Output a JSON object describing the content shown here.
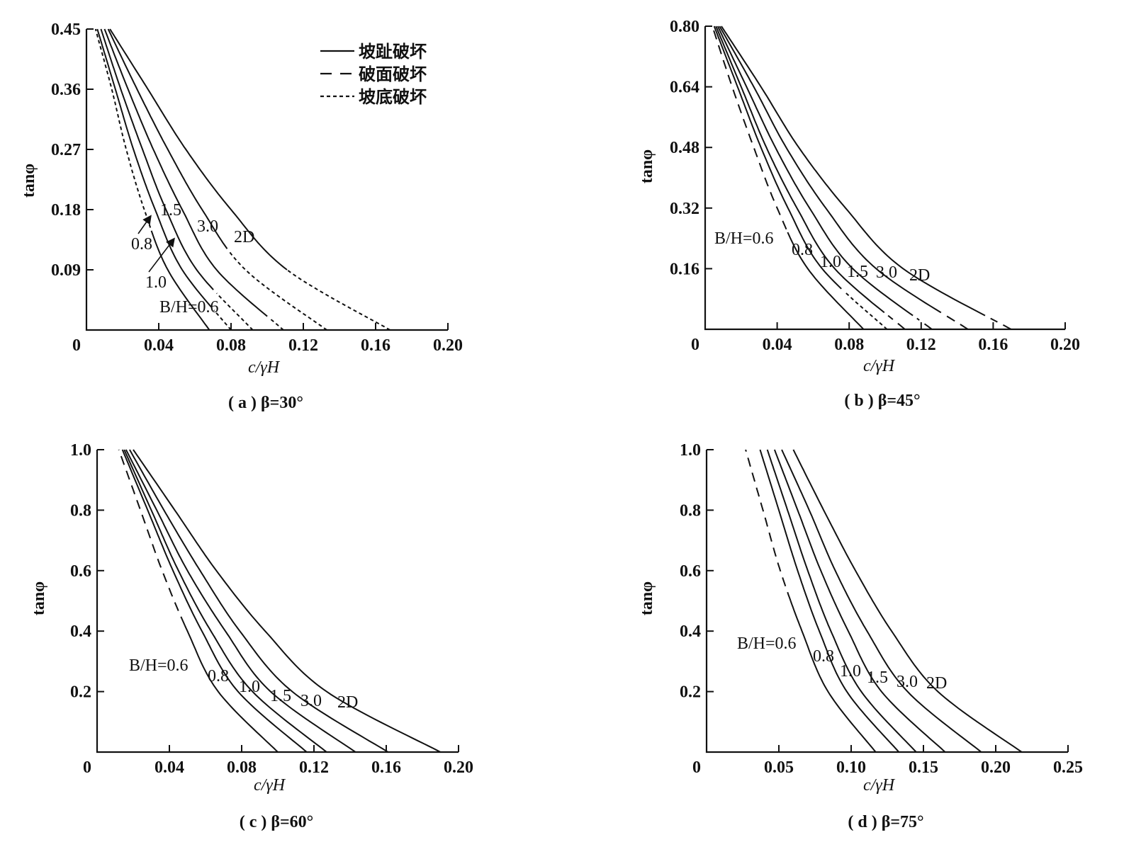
{
  "chart_data": [
    {
      "type": "line",
      "caption": "( a ) β=30°",
      "xlabel": "c/γH",
      "ylabel": "tanφ",
      "xlim": [
        0,
        0.2
      ],
      "ylim": [
        0,
        0.45
      ],
      "x_ticks": [
        "0",
        "0.04",
        "0.08",
        "0.12",
        "0.16",
        "0.20"
      ],
      "x_tick_values": [
        0,
        0.04,
        0.08,
        0.12,
        0.16,
        0.2
      ],
      "y_ticks": [
        "0.09",
        "0.18",
        "0.27",
        "0.36",
        "0.45"
      ],
      "y_tick_values": [
        0.09,
        0.18,
        0.27,
        0.36,
        0.45
      ],
      "legend": {
        "placement": "top-right",
        "entries": [
          {
            "label": "坡趾破坏",
            "style": "solid"
          },
          {
            "label": "破面破坏",
            "style": "dashed"
          },
          {
            "label": "坡底破坏",
            "style": "dotted"
          }
        ]
      },
      "y": [
        0,
        0.09,
        0.18,
        0.27,
        0.36,
        0.45
      ],
      "series": [
        {
          "name": "B/H=0.6",
          "label": "B/H=0.6",
          "x": [
            0.068,
            0.045,
            0.032,
            0.022,
            0.014,
            0.005
          ],
          "break_y": 0.15,
          "upper_style": "dotted",
          "lower_style": "solid"
        },
        {
          "name": "0.8",
          "label": "0.8",
          "x": [
            0.08,
            0.053,
            0.038,
            0.026,
            0.016,
            0.006
          ],
          "break_y": 0.03,
          "upper_style": "solid",
          "lower_style": "dotted"
        },
        {
          "name": "1.0",
          "label": "1.0",
          "x": [
            0.092,
            0.061,
            0.044,
            0.031,
            0.019,
            0.008
          ],
          "break_y": 0.06,
          "upper_style": "solid",
          "lower_style": "dotted"
        },
        {
          "name": "1.5",
          "label": "1.5",
          "x": [
            0.109,
            0.072,
            0.053,
            0.037,
            0.023,
            0.01
          ],
          "break_y": 0.02,
          "upper_style": "solid",
          "lower_style": "dotted"
        },
        {
          "name": "3.0",
          "label": "3.0",
          "x": [
            0.133,
            0.088,
            0.064,
            0.045,
            0.028,
            0.012
          ],
          "break_y": 0.12,
          "upper_style": "solid",
          "lower_style": "dotted"
        },
        {
          "name": "2D",
          "label": "2D",
          "x": [
            0.168,
            0.111,
            0.08,
            0.055,
            0.034,
            0.013
          ],
          "break_y": 0.09,
          "upper_style": "solid",
          "lower_style": "dotted"
        }
      ]
    },
    {
      "type": "line",
      "caption": "( b ) β=45°",
      "xlabel": "c/γH",
      "ylabel": "tanφ",
      "xlim": [
        0,
        0.2
      ],
      "ylim": [
        0,
        0.8
      ],
      "x_ticks": [
        "0",
        "0.04",
        "0.08",
        "0.12",
        "0.16",
        "0.20"
      ],
      "x_tick_values": [
        0,
        0.04,
        0.08,
        0.12,
        0.16,
        0.2
      ],
      "y_ticks": [
        "0.16",
        "0.32",
        "0.48",
        "0.64",
        "0.80"
      ],
      "y_tick_values": [
        0.16,
        0.32,
        0.48,
        0.64,
        0.8
      ],
      "y": [
        0,
        0.16,
        0.32,
        0.48,
        0.64,
        0.8
      ],
      "series": [
        {
          "name": "B/H=0.6",
          "label": "B/H=0.6",
          "x": [
            0.088,
            0.057,
            0.04,
            0.027,
            0.015,
            0.004
          ],
          "break_y": 0.26,
          "upper_style": "dashed",
          "lower_style": "solid"
        },
        {
          "name": "0.8",
          "label": "0.8",
          "x": [
            0.101,
            0.065,
            0.046,
            0.031,
            0.018,
            0.005
          ],
          "break_y": 0.1,
          "upper_style": "solid",
          "lower_style": "dotted"
        },
        {
          "name": "1.0",
          "label": "1.0",
          "x": [
            0.111,
            0.072,
            0.051,
            0.034,
            0.02,
            0.006
          ],
          "break_y": 0.04,
          "upper_style": "solid",
          "lower_style": "dashed"
        },
        {
          "name": "1.5",
          "label": "1.5",
          "x": [
            0.126,
            0.082,
            0.058,
            0.039,
            0.023,
            0.007
          ],
          "break_y": 0.03,
          "upper_style": "solid",
          "lower_style": "dashed"
        },
        {
          "name": "3.0",
          "label": "3.0",
          "x": [
            0.146,
            0.095,
            0.067,
            0.045,
            0.027,
            0.008
          ],
          "break_y": 0.04,
          "upper_style": "solid",
          "lower_style": "dashed"
        },
        {
          "name": "2D",
          "label": "2D",
          "x": [
            0.17,
            0.11,
            0.078,
            0.052,
            0.031,
            0.009
          ],
          "break_y": 0.03,
          "upper_style": "solid",
          "lower_style": "dashed"
        }
      ]
    },
    {
      "type": "line",
      "caption": "( c ) β=60°",
      "xlabel": "c/γH",
      "ylabel": "tanφ",
      "xlim": [
        0,
        0.2
      ],
      "ylim": [
        0,
        1.0
      ],
      "x_ticks": [
        "0",
        "0.04",
        "0.08",
        "0.12",
        "0.16",
        "0.20"
      ],
      "x_tick_values": [
        0,
        0.04,
        0.08,
        0.12,
        0.16,
        0.2
      ],
      "y_ticks": [
        "0.2",
        "0.4",
        "0.6",
        "0.8",
        "1.0"
      ],
      "y_tick_values": [
        0.2,
        0.4,
        0.6,
        0.8,
        1.0
      ],
      "y": [
        0,
        0.2,
        0.4,
        0.6,
        0.8,
        1.0
      ],
      "series": [
        {
          "name": "B/H=0.6",
          "label": "B/H=0.6",
          "x": [
            0.1,
            0.067,
            0.05,
            0.036,
            0.024,
            0.012
          ],
          "break_y": 0.42,
          "upper_style": "dashed",
          "lower_style": "solid"
        },
        {
          "name": "0.8",
          "label": "0.8",
          "x": [
            0.116,
            0.078,
            0.058,
            0.042,
            0.028,
            0.014
          ],
          "break_y": 0,
          "upper_style": "solid",
          "lower_style": "solid"
        },
        {
          "name": "1.0",
          "label": "1.0",
          "x": [
            0.127,
            0.086,
            0.063,
            0.045,
            0.03,
            0.015
          ],
          "break_y": 0,
          "upper_style": "solid",
          "lower_style": "solid"
        },
        {
          "name": "1.5",
          "label": "1.5",
          "x": [
            0.143,
            0.096,
            0.071,
            0.05,
            0.033,
            0.016
          ],
          "break_y": 0,
          "upper_style": "solid",
          "lower_style": "solid"
        },
        {
          "name": "3.0",
          "label": "3.0",
          "x": [
            0.161,
            0.108,
            0.079,
            0.057,
            0.037,
            0.018
          ],
          "break_y": 0,
          "upper_style": "solid",
          "lower_style": "solid"
        },
        {
          "name": "2D",
          "label": "2D",
          "x": [
            0.19,
            0.127,
            0.093,
            0.066,
            0.043,
            0.02
          ],
          "break_y": 0,
          "upper_style": "solid",
          "lower_style": "solid"
        }
      ]
    },
    {
      "type": "line",
      "caption": "( d ) β=75°",
      "xlabel": "c/γH",
      "ylabel": "tanφ",
      "xlim": [
        0,
        0.25
      ],
      "ylim": [
        0,
        1.0
      ],
      "x_ticks": [
        "0",
        "0.05",
        "0.10",
        "0.15",
        "0.20",
        "0.25"
      ],
      "x_tick_values": [
        0,
        0.05,
        0.1,
        0.15,
        0.2,
        0.25
      ],
      "y_ticks": [
        "0.2",
        "0.4",
        "0.6",
        "0.8",
        "1.0"
      ],
      "y_tick_values": [
        0.2,
        0.4,
        0.6,
        0.8,
        1.0
      ],
      "y": [
        0,
        0.2,
        0.4,
        0.6,
        0.8,
        1.0
      ],
      "series": [
        {
          "name": "B/H=0.6",
          "label": "B/H=0.6",
          "x": [
            0.117,
            0.084,
            0.066,
            0.051,
            0.039,
            0.027
          ],
          "break_y": 0.5,
          "upper_style": "dashed",
          "lower_style": "solid"
        },
        {
          "name": "0.8",
          "label": "0.8",
          "x": [
            0.133,
            0.097,
            0.078,
            0.063,
            0.05,
            0.037
          ],
          "break_y": 0,
          "upper_style": "solid",
          "lower_style": "solid"
        },
        {
          "name": "1.0",
          "label": "1.0",
          "x": [
            0.145,
            0.107,
            0.086,
            0.07,
            0.056,
            0.042
          ],
          "break_y": 0,
          "upper_style": "solid",
          "lower_style": "solid"
        },
        {
          "name": "1.5",
          "label": "1.5",
          "x": [
            0.165,
            0.121,
            0.098,
            0.079,
            0.063,
            0.047
          ],
          "break_y": 0,
          "upper_style": "solid",
          "lower_style": "solid"
        },
        {
          "name": "3.0",
          "label": "3.0",
          "x": [
            0.19,
            0.139,
            0.111,
            0.089,
            0.071,
            0.052
          ],
          "break_y": 0,
          "upper_style": "solid",
          "lower_style": "solid"
        },
        {
          "name": "2D",
          "label": "2D",
          "x": [
            0.218,
            0.16,
            0.128,
            0.103,
            0.081,
            0.06
          ],
          "break_y": 0,
          "upper_style": "solid",
          "lower_style": "solid"
        }
      ]
    }
  ]
}
